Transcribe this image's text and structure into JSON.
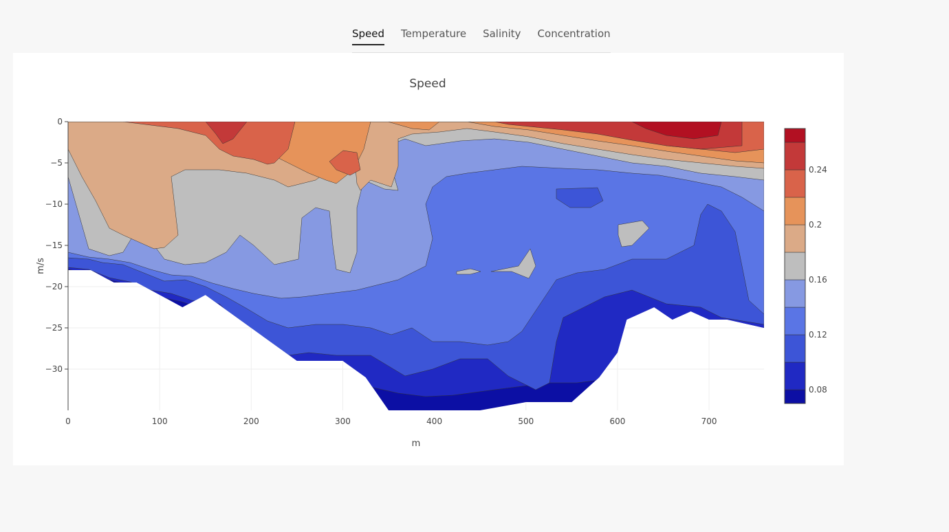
{
  "tabs": [
    {
      "label": "Speed",
      "active": true
    },
    {
      "label": "Temperature",
      "active": false
    },
    {
      "label": "Salinity",
      "active": false
    },
    {
      "label": "Concentration",
      "active": false
    }
  ],
  "chart_data": {
    "type": "contour",
    "title": "Speed",
    "xlabel": "m",
    "ylabel": "m/s",
    "xlim": [
      0,
      760
    ],
    "ylim": [
      -35,
      0
    ],
    "xticks": [
      0,
      100,
      200,
      300,
      400,
      500,
      600,
      700
    ],
    "yticks": [
      0,
      -5,
      -10,
      -15,
      -20,
      -25,
      -30
    ],
    "grid": true,
    "colorbar": {
      "range": [
        0.07,
        0.27
      ],
      "ticks": [
        0.08,
        0.12,
        0.16,
        0.2,
        0.24
      ],
      "tick_labels": [
        "0.08",
        "0.12",
        "0.16",
        "0.2",
        "0.24"
      ],
      "level_colors": [
        "#0c0fa4",
        "#2029c3",
        "#3d55d7",
        "#5a75e5",
        "#8699e2",
        "#bebebe",
        "#dbaa87",
        "#e6935a",
        "#d9634a",
        "#c33939",
        "#b21022"
      ]
    },
    "bottom_profile": [
      [
        0,
        -18
      ],
      [
        25,
        -18
      ],
      [
        50,
        -19.5
      ],
      [
        75,
        -19.5
      ],
      [
        100,
        -21
      ],
      [
        125,
        -22.5
      ],
      [
        150,
        -21
      ],
      [
        175,
        -23
      ],
      [
        200,
        -25
      ],
      [
        250,
        -29
      ],
      [
        300,
        -29
      ],
      [
        325,
        -31
      ],
      [
        350,
        -35
      ],
      [
        400,
        -35
      ],
      [
        450,
        -35
      ],
      [
        500,
        -34
      ],
      [
        550,
        -34
      ],
      [
        560,
        -33
      ],
      [
        580,
        -31
      ],
      [
        600,
        -28
      ],
      [
        610,
        -24
      ],
      [
        640,
        -22.5
      ],
      [
        660,
        -24
      ],
      [
        680,
        -23
      ],
      [
        700,
        -24
      ],
      [
        720,
        -24
      ],
      [
        760,
        -25
      ]
    ]
  }
}
